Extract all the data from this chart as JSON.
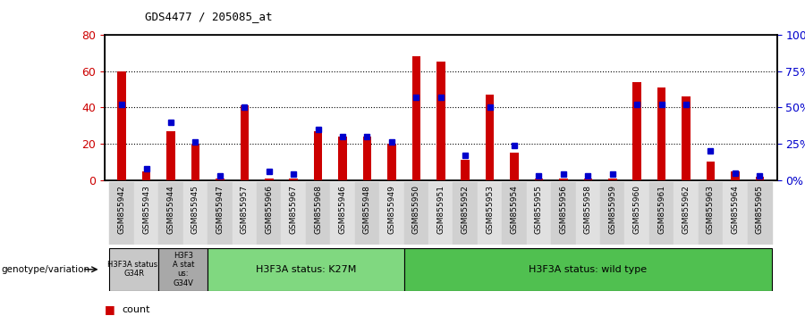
{
  "title": "GDS4477 / 205085_at",
  "samples": [
    "GSM855942",
    "GSM855943",
    "GSM855944",
    "GSM855945",
    "GSM855947",
    "GSM855957",
    "GSM855966",
    "GSM855967",
    "GSM855968",
    "GSM855946",
    "GSM855948",
    "GSM855949",
    "GSM855950",
    "GSM855951",
    "GSM855952",
    "GSM855953",
    "GSM855954",
    "GSM855955",
    "GSM855956",
    "GSM855958",
    "GSM855959",
    "GSM855960",
    "GSM855961",
    "GSM855962",
    "GSM855963",
    "GSM855964",
    "GSM855965"
  ],
  "counts": [
    60,
    5,
    27,
    20,
    1,
    41,
    1,
    1,
    27,
    24,
    24,
    20,
    68,
    65,
    11,
    47,
    15,
    1,
    1,
    1,
    1,
    54,
    51,
    46,
    10,
    5,
    2
  ],
  "percentiles": [
    52,
    8,
    40,
    26,
    3,
    50,
    6,
    4,
    35,
    30,
    30,
    26,
    57,
    57,
    17,
    50,
    24,
    3,
    4,
    3,
    4,
    52,
    52,
    52,
    20,
    5,
    3
  ],
  "group_boundaries": [
    {
      "label": "H3F3A status:\nG34R",
      "start": 0,
      "end": 2,
      "color": "#c8c8c8"
    },
    {
      "label": "H3F3\nA stat\nus:\nG34V",
      "start": 2,
      "end": 4,
      "color": "#a8a8a8"
    },
    {
      "label": "H3F3A status: K27M",
      "start": 4,
      "end": 12,
      "color": "#80d880"
    },
    {
      "label": "H3F3A status: wild type",
      "start": 12,
      "end": 27,
      "color": "#50c050"
    }
  ],
  "ylim_left": [
    0,
    80
  ],
  "ylim_right": [
    0,
    100
  ],
  "yticks_left": [
    0,
    20,
    40,
    60,
    80
  ],
  "yticks_right": [
    0,
    25,
    50,
    75,
    100
  ],
  "ytick_labels_left": [
    "0",
    "20",
    "40",
    "60",
    "80"
  ],
  "ytick_labels_right": [
    "0%",
    "25%",
    "50%",
    "75%",
    "100%"
  ],
  "bar_color": "#cc0000",
  "dot_color": "#0000cc",
  "bg_color": "#ffffff",
  "bar_width": 0.35,
  "dot_size": 5
}
